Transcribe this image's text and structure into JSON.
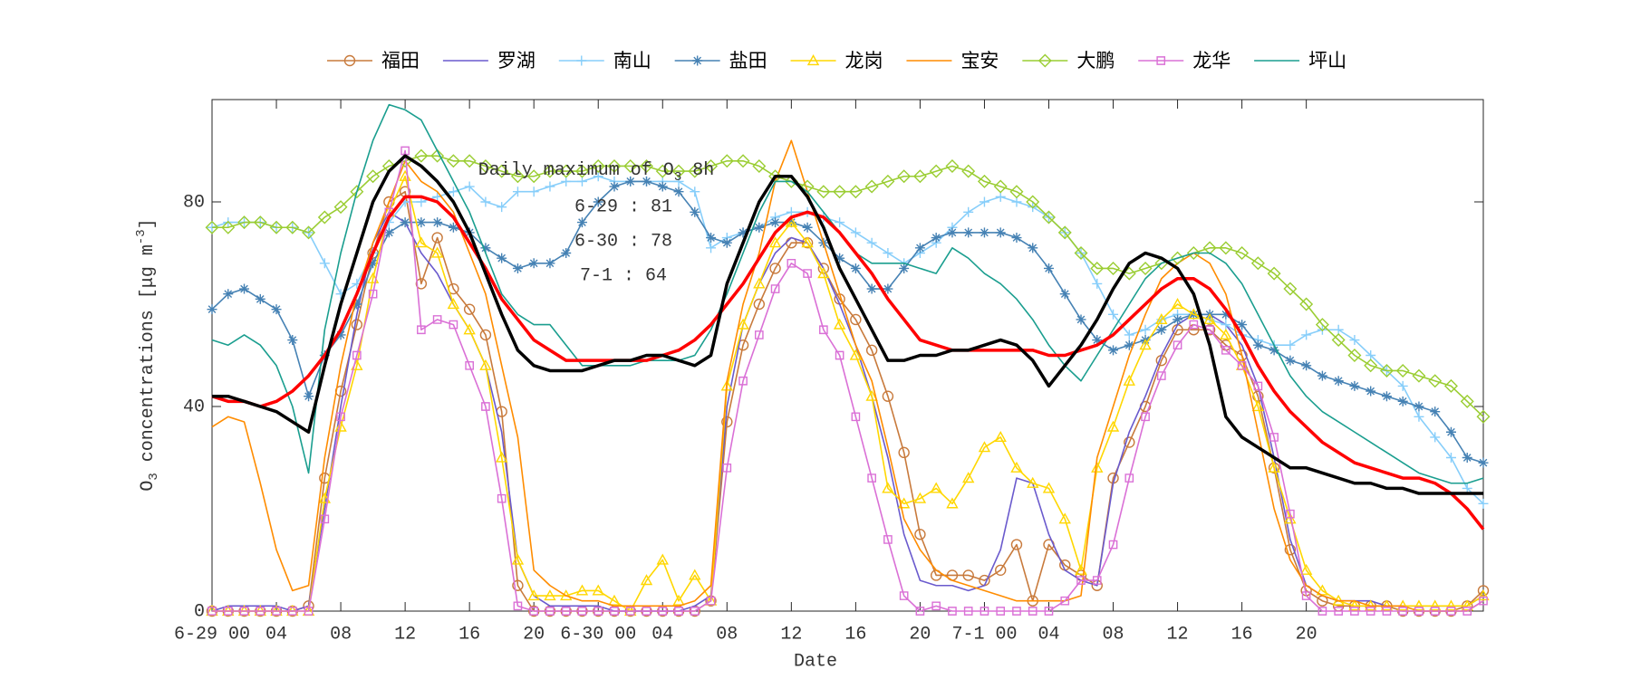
{
  "chart_data": {
    "type": "line",
    "xlabel": "Date",
    "ylabel": {
      "text": "O",
      "sub": "3",
      "middle": " concentrations [μg m",
      "sup": "-3",
      "end": "]"
    },
    "annotation": {
      "title": {
        "text": "Daily maximum of O",
        "sub": "3",
        "end": " 8h"
      },
      "lines": [
        "6-29 : 81",
        "6-30 : 78",
        "7-1 : 64"
      ]
    },
    "xlim": [
      0,
      79
    ],
    "ylim": [
      0,
      100
    ],
    "yticks": [
      0,
      40,
      80
    ],
    "xticks": [
      {
        "value": 0,
        "label": "6-29 00"
      },
      {
        "value": 4,
        "label": "04"
      },
      {
        "value": 8,
        "label": "08"
      },
      12,
      16,
      20,
      {
        "value": 24,
        "label": "6-30 00"
      },
      {
        "value": 28,
        "label": "04"
      },
      {
        "value": 32,
        "label": "08"
      },
      {
        "value": 36,
        "label": "12"
      },
      {
        "value": 40,
        "label": "16"
      },
      {
        "value": 44,
        "label": "20"
      },
      {
        "value": 48,
        "label": "7-1 00"
      },
      {
        "value": 52,
        "label": "04"
      },
      {
        "value": 56,
        "label": "08"
      },
      {
        "value": 60,
        "label": "12"
      },
      {
        "value": 64,
        "label": "16"
      },
      {
        "value": 68,
        "label": "20"
      }
    ],
    "legend": "top",
    "x": [
      0,
      1,
      2,
      3,
      4,
      5,
      6,
      7,
      8,
      9,
      10,
      11,
      12,
      13,
      14,
      15,
      16,
      17,
      18,
      19,
      20,
      21,
      22,
      23,
      24,
      25,
      26,
      27,
      28,
      29,
      30,
      31,
      32,
      33,
      34,
      35,
      36,
      37,
      38,
      39,
      40,
      41,
      42,
      43,
      44,
      45,
      46,
      47,
      48,
      49,
      50,
      51,
      52,
      53,
      54,
      55,
      56,
      57,
      58,
      59,
      60,
      61,
      62,
      63,
      64,
      65,
      66,
      67,
      68,
      69,
      70,
      71,
      72,
      73,
      74,
      75,
      76,
      77,
      78,
      79
    ],
    "series": [
      {
        "name": "福田",
        "color": "#c87a3c",
        "marker": "circle",
        "values": [
          0,
          0,
          0,
          0,
          0,
          0,
          1,
          26,
          43,
          56,
          70,
          80,
          82,
          64,
          73,
          63,
          59,
          54,
          39,
          5,
          0,
          0,
          0,
          0,
          0,
          0,
          0,
          0,
          0,
          0,
          0,
          2,
          37,
          52,
          60,
          67,
          72,
          72,
          67,
          61,
          57,
          51,
          42,
          31,
          15,
          7,
          7,
          7,
          6,
          8,
          13,
          2,
          13,
          9,
          7,
          5,
          26,
          33,
          40,
          49,
          55,
          55,
          55,
          52,
          50,
          42,
          28,
          12,
          4,
          2,
          1,
          1,
          1,
          1,
          0,
          0,
          0,
          0,
          1,
          4
        ]
      },
      {
        "name": "罗湖",
        "color": "#6a5acd",
        "marker": "none",
        "values": [
          0,
          1,
          1,
          1,
          1,
          0,
          1,
          20,
          40,
          58,
          72,
          78,
          76,
          70,
          66,
          60,
          55,
          48,
          35,
          10,
          3,
          1,
          1,
          1,
          1,
          0,
          0,
          0,
          0,
          0,
          1,
          3,
          40,
          56,
          64,
          70,
          73,
          72,
          67,
          60,
          52,
          42,
          30,
          15,
          6,
          5,
          5,
          4,
          5,
          12,
          26,
          25,
          15,
          8,
          6,
          5,
          25,
          35,
          42,
          50,
          56,
          58,
          58,
          56,
          52,
          44,
          30,
          14,
          5,
          3,
          2,
          2,
          2,
          1,
          1,
          1,
          1,
          1,
          1,
          3
        ]
      },
      {
        "name": "南山",
        "color": "#87cefa",
        "marker": "plus",
        "values": [
          75,
          76,
          76,
          76,
          75,
          75,
          74,
          68,
          62,
          64,
          70,
          76,
          80,
          80,
          81,
          82,
          83,
          80,
          79,
          82,
          82,
          83,
          84,
          84,
          85,
          84,
          84,
          84,
          84,
          84,
          82,
          71,
          73,
          74,
          75,
          77,
          78,
          78,
          77,
          76,
          74,
          72,
          70,
          68,
          70,
          72,
          75,
          78,
          80,
          81,
          80,
          79,
          77,
          74,
          70,
          64,
          58,
          54,
          55,
          57,
          58,
          58,
          57,
          56,
          54,
          53,
          52,
          52,
          54,
          55,
          55,
          53,
          50,
          47,
          44,
          38,
          34,
          30,
          24,
          21
        ]
      },
      {
        "name": "盐田",
        "color": "#4682b4",
        "marker": "asterisk",
        "values": [
          59,
          62,
          63,
          61,
          59,
          53,
          42,
          50,
          54,
          60,
          68,
          74,
          76,
          76,
          76,
          75,
          74,
          71,
          69,
          67,
          68,
          68,
          70,
          76,
          80,
          83,
          84,
          84,
          83,
          82,
          78,
          73,
          72,
          74,
          75,
          76,
          76,
          75,
          72,
          69,
          67,
          63,
          63,
          67,
          71,
          73,
          74,
          74,
          74,
          74,
          73,
          71,
          67,
          62,
          57,
          53,
          51,
          52,
          53,
          55,
          57,
          58,
          58,
          58,
          56,
          52,
          51,
          49,
          48,
          46,
          45,
          44,
          43,
          42,
          41,
          40,
          39,
          35,
          30,
          29
        ]
      },
      {
        "name": "龙岗",
        "color": "#ffd700",
        "marker": "triangle",
        "values": [
          0,
          0,
          0,
          0,
          0,
          0,
          0,
          22,
          36,
          48,
          65,
          78,
          85,
          72,
          70,
          60,
          55,
          48,
          30,
          10,
          3,
          3,
          3,
          4,
          4,
          2,
          0,
          6,
          10,
          2,
          7,
          2,
          44,
          56,
          64,
          72,
          76,
          72,
          66,
          56,
          50,
          42,
          24,
          21,
          22,
          24,
          21,
          26,
          32,
          34,
          28,
          25,
          24,
          18,
          8,
          28,
          36,
          45,
          52,
          57,
          60,
          58,
          57,
          54,
          48,
          40,
          28,
          18,
          8,
          4,
          2,
          1,
          1,
          1,
          1,
          1,
          1,
          1,
          1,
          3
        ]
      },
      {
        "name": "宝安",
        "color": "#ff8c00",
        "marker": "none",
        "values": [
          36,
          38,
          37,
          25,
          12,
          4,
          5,
          30,
          48,
          62,
          72,
          80,
          88,
          84,
          82,
          78,
          70,
          62,
          48,
          34,
          8,
          5,
          3,
          2,
          2,
          1,
          1,
          1,
          1,
          1,
          2,
          5,
          45,
          60,
          70,
          84,
          92,
          82,
          72,
          62,
          52,
          45,
          32,
          18,
          12,
          8,
          6,
          5,
          4,
          3,
          2,
          2,
          2,
          2,
          3,
          30,
          40,
          50,
          58,
          65,
          68,
          70,
          68,
          62,
          50,
          35,
          20,
          10,
          5,
          3,
          2,
          2,
          1,
          1,
          1,
          0,
          0,
          0,
          0,
          2
        ]
      },
      {
        "name": "大鹏",
        "color": "#9acd32",
        "marker": "diamond",
        "values": [
          75,
          75,
          76,
          76,
          75,
          75,
          74,
          77,
          79,
          82,
          85,
          87,
          88,
          89,
          89,
          88,
          88,
          87,
          86,
          85,
          85,
          86,
          86,
          86,
          87,
          87,
          87,
          87,
          86,
          86,
          86,
          87,
          88,
          88,
          87,
          85,
          84,
          83,
          82,
          82,
          82,
          83,
          84,
          85,
          85,
          86,
          87,
          86,
          84,
          83,
          82,
          80,
          77,
          74,
          70,
          67,
          67,
          66,
          67,
          68,
          69,
          70,
          71,
          71,
          70,
          68,
          66,
          63,
          60,
          56,
          53,
          50,
          48,
          47,
          47,
          46,
          45,
          44,
          41,
          38
        ]
      },
      {
        "name": "龙华",
        "color": "#da70d6",
        "marker": "square",
        "values": [
          0,
          0,
          0,
          0,
          0,
          0,
          0,
          18,
          38,
          50,
          62,
          78,
          90,
          55,
          57,
          56,
          48,
          40,
          22,
          1,
          0,
          0,
          0,
          0,
          0,
          0,
          0,
          0,
          0,
          0,
          0,
          2,
          28,
          45,
          54,
          63,
          68,
          66,
          55,
          50,
          38,
          26,
          14,
          3,
          0,
          1,
          0,
          0,
          0,
          0,
          0,
          0,
          0,
          2,
          6,
          6,
          13,
          26,
          38,
          46,
          52,
          56,
          55,
          51,
          48,
          44,
          34,
          19,
          3,
          0,
          0,
          0,
          0,
          0,
          0,
          0,
          0,
          0,
          0,
          2
        ]
      },
      {
        "name": "坪山",
        "color": "#1a9e8f",
        "marker": "none",
        "values": [
          53,
          52,
          54,
          52,
          48,
          40,
          27,
          55,
          70,
          82,
          92,
          99,
          98,
          96,
          90,
          84,
          78,
          70,
          62,
          58,
          56,
          56,
          52,
          48,
          48,
          48,
          48,
          49,
          49,
          49,
          50,
          55,
          62,
          70,
          78,
          84,
          84,
          82,
          78,
          74,
          70,
          68,
          68,
          68,
          67,
          66,
          71,
          69,
          66,
          64,
          61,
          57,
          52,
          48,
          45,
          50,
          55,
          60,
          65,
          68,
          69,
          70,
          70,
          68,
          64,
          58,
          52,
          46,
          42,
          39,
          37,
          35,
          33,
          31,
          29,
          27,
          26,
          25,
          25,
          26
        ]
      },
      {
        "color": "#ff0000",
        "marker": "none",
        "line_width": 3.5,
        "values": [
          42,
          41,
          41,
          40,
          41,
          43,
          46,
          50,
          55,
          62,
          70,
          77,
          81,
          81,
          80,
          77,
          72,
          67,
          61,
          57,
          53,
          51,
          49,
          49,
          49,
          49,
          49,
          49,
          50,
          51,
          53,
          56,
          60,
          64,
          69,
          74,
          77,
          78,
          77,
          74,
          70,
          66,
          61,
          57,
          53,
          52,
          51,
          51,
          51,
          51,
          51,
          51,
          50,
          50,
          51,
          52,
          54,
          57,
          60,
          63,
          65,
          65,
          63,
          59,
          54,
          48,
          43,
          39,
          36,
          33,
          31,
          29,
          28,
          27,
          26,
          26,
          25,
          23,
          20,
          16
        ]
      },
      {
        "color": "#000000",
        "marker": "none",
        "line_width": 3.5,
        "values": [
          42,
          42,
          41,
          40,
          39,
          37,
          35,
          48,
          60,
          70,
          80,
          86,
          89,
          87,
          84,
          80,
          74,
          66,
          58,
          51,
          48,
          47,
          47,
          47,
          48,
          49,
          49,
          50,
          50,
          49,
          48,
          50,
          64,
          72,
          80,
          85,
          85,
          81,
          75,
          67,
          61,
          55,
          49,
          49,
          50,
          50,
          51,
          51,
          52,
          53,
          52,
          49,
          44,
          48,
          52,
          57,
          63,
          68,
          70,
          69,
          67,
          62,
          52,
          38,
          34,
          32,
          30,
          28,
          28,
          27,
          26,
          25,
          25,
          24,
          24,
          23,
          23,
          23,
          23,
          23
        ]
      }
    ]
  }
}
